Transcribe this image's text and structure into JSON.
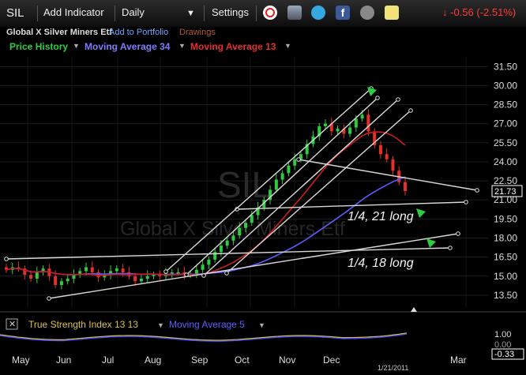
{
  "toolbar": {
    "symbol": "SIL",
    "add_indicator": "Add Indicator",
    "period": "Daily",
    "settings": "Settings",
    "change": "-0.56 (-2.51%)",
    "icons": [
      "alarm-clock-icon",
      "database-icon",
      "twitter-icon",
      "facebook-icon",
      "link-icon",
      "sticky-note-icon"
    ]
  },
  "subbar": {
    "name": "Global X Silver Miners Etf",
    "add_portfolio": "Add to Portfolio",
    "drawings": "Drawings"
  },
  "legend": {
    "price": "Price History",
    "ma34": "Moving Average 34",
    "ma13": "Moving Average 13"
  },
  "watermark": {
    "symbol": "SIL",
    "name": "Global X Silver Miners Etf"
  },
  "annotations": [
    "1/4, 21 long",
    "1/4, 18 long"
  ],
  "price_tag": "21.73",
  "indicator": {
    "tsi": "True Strength Index 13 13",
    "ma5": "Moving Average 5",
    "ticks": [
      "1.00",
      "0.00",
      "-0.33"
    ]
  },
  "date_stamp": "1/21/2011",
  "colors": {
    "up": "#2ecc40",
    "down": "#e0322d",
    "ma34": "#5c5cff",
    "ma13": "#c81e1e",
    "accent_red": "#ff3b3b"
  },
  "chart_data": {
    "type": "candlestick",
    "x_ticks": [
      "May",
      "Jun",
      "Jul",
      "Aug",
      "Sep",
      "Oct",
      "Nov",
      "Dec",
      "Mar"
    ],
    "y_ticks": [
      31.5,
      30.0,
      28.5,
      27.0,
      25.5,
      24.0,
      22.5,
      21.0,
      19.5,
      18.0,
      16.5,
      15.0,
      13.5
    ],
    "ylim": [
      12.5,
      32.2
    ],
    "last_price": 21.73,
    "close_series": [
      15.5,
      15.7,
      15.6,
      15.1,
      14.8,
      15.3,
      15.6,
      15.0,
      14.3,
      14.6,
      14.8,
      15.1,
      15.4,
      15.7,
      15.3,
      14.9,
      15.1,
      15.4,
      15.6,
      15.3,
      15.0,
      14.6,
      14.8,
      15.0,
      15.1,
      15.0,
      15.2,
      15.3,
      15.3,
      15.1,
      15.2,
      15.5,
      15.9,
      16.3,
      16.9,
      17.4,
      17.8,
      18.2,
      18.8,
      19.2,
      19.8,
      20.4,
      21.0,
      21.8,
      22.6,
      23.1,
      23.7,
      24.2,
      24.6,
      25.4,
      26.0,
      26.8,
      27.0,
      26.4,
      26.6,
      26.2,
      26.7,
      27.4,
      27.7,
      26.4,
      25.3,
      24.6,
      24.2,
      23.3,
      22.4,
      21.7
    ]
  }
}
